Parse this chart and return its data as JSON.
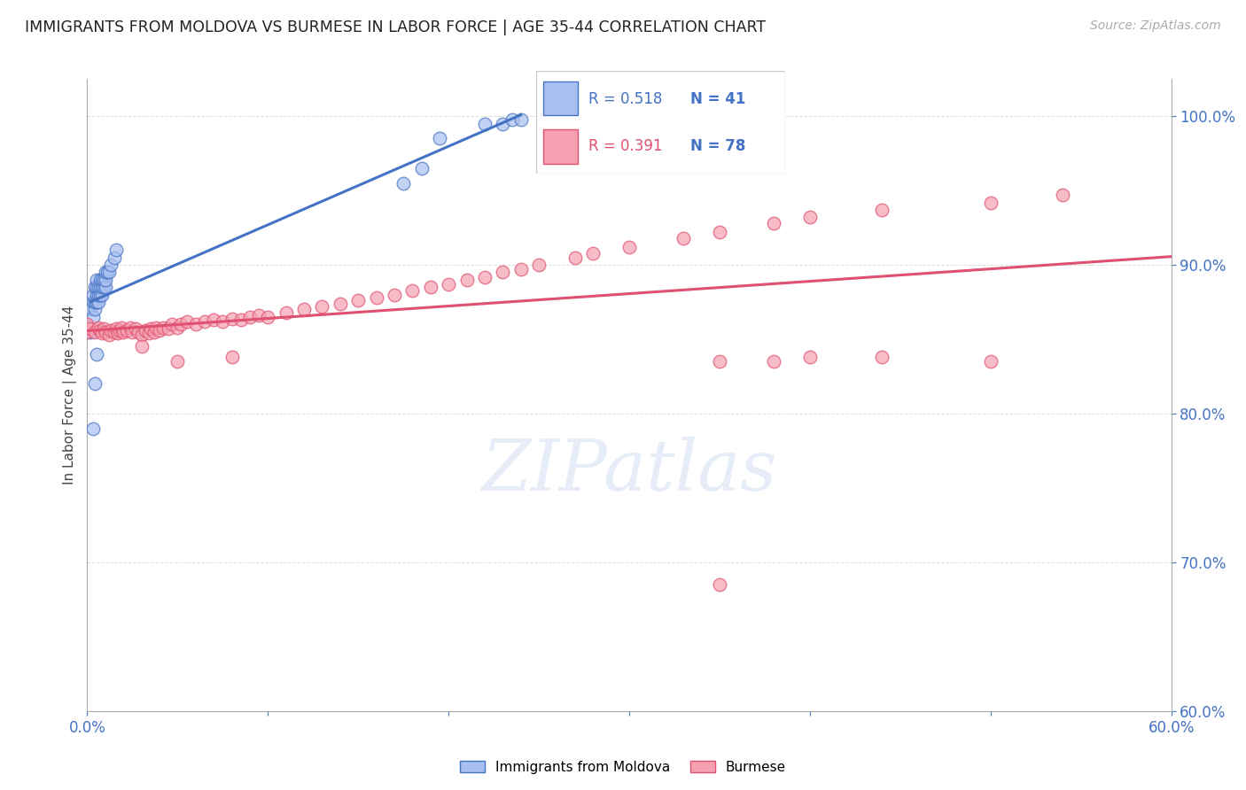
{
  "title": "IMMIGRANTS FROM MOLDOVA VS BURMESE IN LABOR FORCE | AGE 35-44 CORRELATION CHART",
  "source": "Source: ZipAtlas.com",
  "ylabel": "In Labor Force | Age 35-44",
  "watermark": "ZIPatlas",
  "legend_blue_r": "R = 0.518",
  "legend_blue_n": "N = 41",
  "legend_pink_r": "R = 0.391",
  "legend_pink_n": "N = 78",
  "legend_label_blue": "Immigrants from Moldova",
  "legend_label_pink": "Burmese",
  "xlim": [
    0.0,
    0.6
  ],
  "ylim": [
    0.6,
    1.025
  ],
  "xticks": [
    0.0,
    0.1,
    0.2,
    0.3,
    0.4,
    0.5,
    0.6
  ],
  "xtick_labels": [
    "0.0%",
    "",
    "",
    "",
    "",
    "",
    "60.0%"
  ],
  "yticks": [
    0.6,
    0.7,
    0.8,
    0.9,
    1.0
  ],
  "ytick_labels": [
    "60.0%",
    "70.0%",
    "80.0%",
    "90.0%",
    "100.0%"
  ],
  "blue_fill": "#a8c0f0",
  "blue_edge": "#4472c4",
  "pink_fill": "#f4a0b0",
  "pink_edge": "#e05070",
  "blue_line": "#4472c4",
  "pink_line": "#e05070",
  "tick_color": "#4472c4",
  "grid_color": "#dddddd",
  "blue_scatter_x": [
    0.002,
    0.002,
    0.003,
    0.003,
    0.003,
    0.004,
    0.004,
    0.004,
    0.005,
    0.005,
    0.005,
    0.005,
    0.006,
    0.006,
    0.006,
    0.007,
    0.007,
    0.007,
    0.008,
    0.008,
    0.008,
    0.009,
    0.009,
    0.01,
    0.01,
    0.01,
    0.011,
    0.012,
    0.013,
    0.015,
    0.016,
    0.003,
    0.004,
    0.005,
    0.175,
    0.185,
    0.195,
    0.22,
    0.23,
    0.235,
    0.24
  ],
  "blue_scatter_y": [
    0.855,
    0.87,
    0.865,
    0.875,
    0.88,
    0.87,
    0.875,
    0.885,
    0.875,
    0.88,
    0.885,
    0.89,
    0.875,
    0.88,
    0.885,
    0.88,
    0.885,
    0.89,
    0.88,
    0.885,
    0.89,
    0.885,
    0.89,
    0.885,
    0.89,
    0.895,
    0.895,
    0.895,
    0.9,
    0.905,
    0.91,
    0.79,
    0.82,
    0.84,
    0.955,
    0.965,
    0.985,
    0.995,
    0.995,
    0.998,
    0.998
  ],
  "pink_scatter_x": [
    0.0,
    0.0,
    0.002,
    0.004,
    0.006,
    0.007,
    0.008,
    0.009,
    0.01,
    0.012,
    0.013,
    0.015,
    0.016,
    0.017,
    0.018,
    0.019,
    0.02,
    0.022,
    0.024,
    0.025,
    0.027,
    0.028,
    0.03,
    0.032,
    0.034,
    0.035,
    0.037,
    0.038,
    0.04,
    0.042,
    0.045,
    0.047,
    0.05,
    0.052,
    0.055,
    0.06,
    0.065,
    0.07,
    0.075,
    0.08,
    0.085,
    0.09,
    0.095,
    0.1,
    0.11,
    0.12,
    0.13,
    0.14,
    0.15,
    0.16,
    0.17,
    0.18,
    0.19,
    0.2,
    0.21,
    0.22,
    0.23,
    0.24,
    0.25,
    0.27,
    0.28,
    0.3,
    0.33,
    0.35,
    0.38,
    0.4,
    0.44,
    0.5,
    0.54,
    0.03,
    0.05,
    0.08,
    0.35,
    0.38,
    0.4,
    0.44,
    0.5
  ],
  "pink_scatter_y": [
    0.855,
    0.86,
    0.857,
    0.855,
    0.858,
    0.856,
    0.854,
    0.857,
    0.855,
    0.853,
    0.856,
    0.855,
    0.857,
    0.854,
    0.856,
    0.858,
    0.855,
    0.856,
    0.858,
    0.855,
    0.857,
    0.855,
    0.853,
    0.856,
    0.854,
    0.857,
    0.855,
    0.858,
    0.856,
    0.858,
    0.857,
    0.86,
    0.858,
    0.86,
    0.862,
    0.86,
    0.862,
    0.863,
    0.862,
    0.864,
    0.863,
    0.865,
    0.866,
    0.865,
    0.868,
    0.87,
    0.872,
    0.874,
    0.876,
    0.878,
    0.88,
    0.883,
    0.885,
    0.887,
    0.89,
    0.892,
    0.895,
    0.897,
    0.9,
    0.905,
    0.908,
    0.912,
    0.918,
    0.922,
    0.928,
    0.932,
    0.937,
    0.942,
    0.947,
    0.845,
    0.835,
    0.838,
    0.835,
    0.835,
    0.838,
    0.838,
    0.835
  ],
  "pink_outlier_x": [
    0.35
  ],
  "pink_outlier_y": [
    0.685
  ]
}
